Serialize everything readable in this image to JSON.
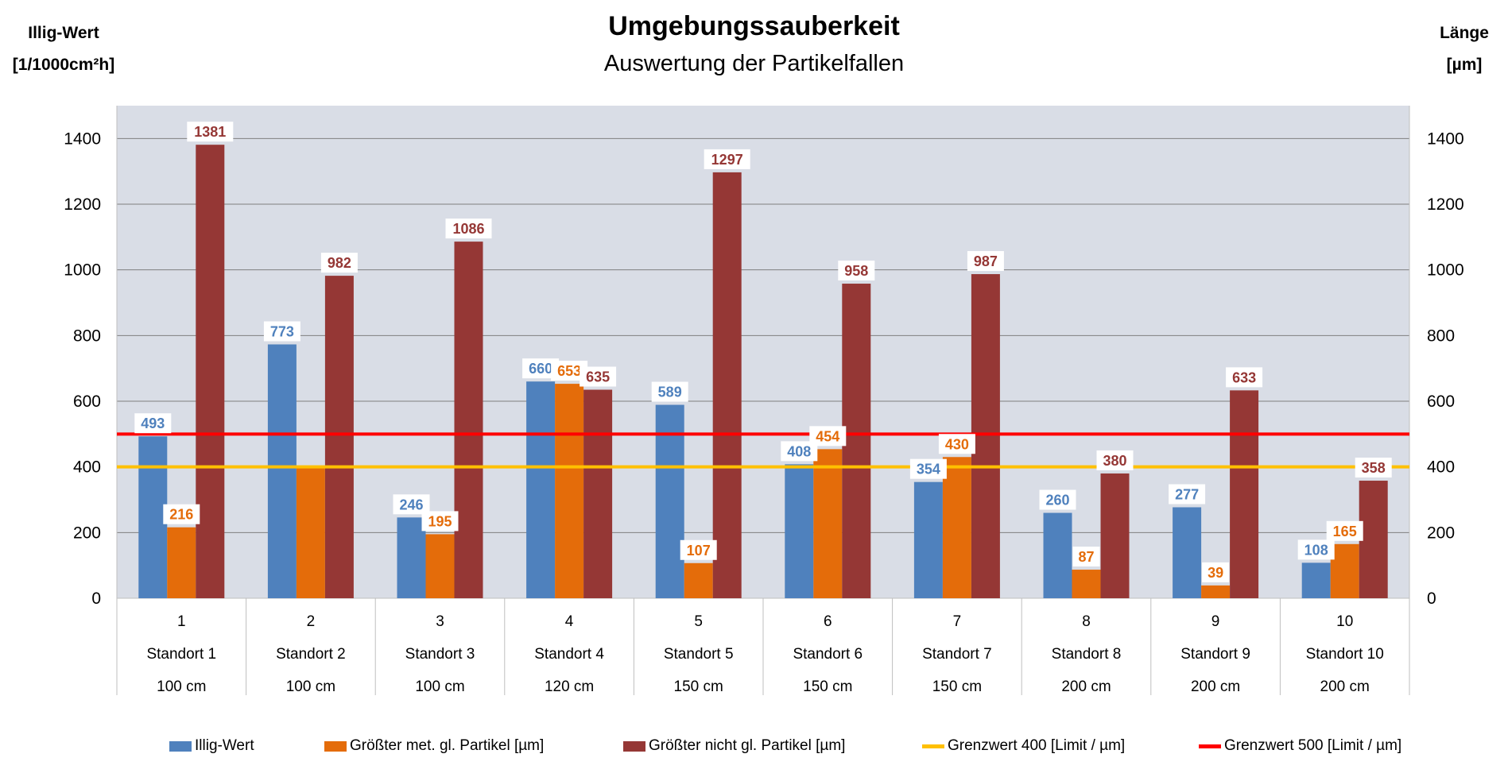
{
  "header": {
    "title": "Umgebungssauberkeit",
    "subtitle": "Auswertung der Partikelfallen",
    "left_axis_title_line1": "Illig-Wert",
    "left_axis_title_line2": "[1/1000cm²h]",
    "right_axis_title_line1": "Länge",
    "right_axis_title_line2": "[µm]"
  },
  "chart_data": {
    "type": "bar",
    "title": "Umgebungssauberkeit",
    "subtitle": "Auswertung der Partikelfallen",
    "ylabel": "Illig-Wert [1/1000cm²h]",
    "y2label": "Länge [µm]",
    "ylim": [
      0,
      1500
    ],
    "y2lim": [
      0,
      1500
    ],
    "yticks": [
      0,
      200,
      400,
      600,
      800,
      1000,
      1200,
      1400
    ],
    "grid": true,
    "legend_position": "bottom",
    "categories": [
      {
        "number": "1",
        "location": "Standort 1",
        "height": "100 cm"
      },
      {
        "number": "2",
        "location": "Standort 2",
        "height": "100 cm"
      },
      {
        "number": "3",
        "location": "Standort 3",
        "height": "100 cm"
      },
      {
        "number": "4",
        "location": "Standort 4",
        "height": "120 cm"
      },
      {
        "number": "5",
        "location": "Standort 5",
        "height": "150 cm"
      },
      {
        "number": "6",
        "location": "Standort 6",
        "height": "150 cm"
      },
      {
        "number": "7",
        "location": "Standort 7",
        "height": "150 cm"
      },
      {
        "number": "8",
        "location": "Standort 8",
        "height": "200 cm"
      },
      {
        "number": "9",
        "location": "Standort 9",
        "height": "200 cm"
      },
      {
        "number": "10",
        "location": "Standort 10",
        "height": "200 cm"
      }
    ],
    "series": [
      {
        "name": "Illig-Wert",
        "color": "#4f81bd",
        "label_color": "#4f81bd",
        "values": [
          493,
          773,
          246,
          660,
          589,
          408,
          354,
          260,
          277,
          108
        ]
      },
      {
        "name": "Größter met. gl. Partikel [µm]",
        "color": "#e46c0a",
        "label_color": "#e46c0a",
        "values": [
          216,
          402,
          195,
          653,
          107,
          454,
          430,
          87,
          39,
          165
        ]
      },
      {
        "name": "Größter nicht gl. Partikel [µm]",
        "color": "#953735",
        "label_color": "#953735",
        "values": [
          1381,
          982,
          1086,
          635,
          1297,
          958,
          987,
          380,
          633,
          358
        ]
      }
    ],
    "reference_lines": [
      {
        "name": "Grenzwert 400 [Limit / µm]",
        "value": 400,
        "color": "#ffc000"
      },
      {
        "name": "Grenzwert 500 [Limit / µm]",
        "value": 500,
        "color": "#ff0000"
      }
    ],
    "hidden_label_indices": {
      "1": [
        1
      ]
    },
    "colors": {
      "plot_background": "#d9dde6",
      "gridline": "#7f7f7f"
    }
  }
}
